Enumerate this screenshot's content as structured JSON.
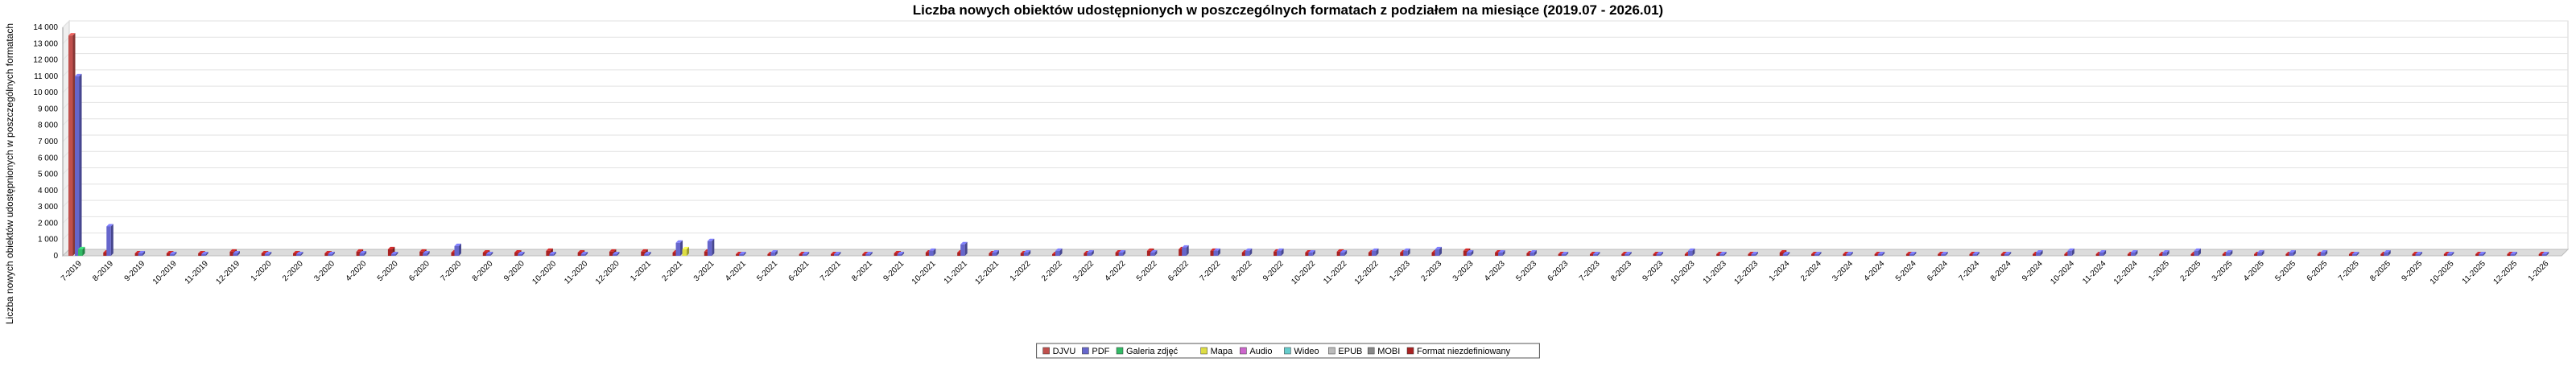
{
  "chart_data": {
    "type": "bar",
    "title": "Liczba nowych obiektów udostępnionych w poszczególnych formatach z podziałem na miesiące (2019.07 - 2026.01)",
    "ylabel": "Liczba nowych obiektów udostępnionych w poszczególnych formatach",
    "xlabel": "",
    "ylim": [
      0,
      14000
    ],
    "yticks": [
      0,
      1000,
      2000,
      3000,
      4000,
      5000,
      6000,
      7000,
      8000,
      9000,
      10000,
      11000,
      12000,
      13000,
      14000
    ],
    "ytick_labels": [
      "0",
      "1 000",
      "2 000",
      "3 000",
      "4 000",
      "5 000",
      "6 000",
      "7 000",
      "8 000",
      "9 000",
      "10 000",
      "11 000",
      "12 000",
      "13 000",
      "14 000"
    ],
    "grid": true,
    "legend_position": "bottom",
    "categories": [
      "7-2019",
      "8-2019",
      "9-2019",
      "10-2019",
      "11-2019",
      "12-2019",
      "1-2020",
      "2-2020",
      "3-2020",
      "4-2020",
      "5-2020",
      "6-2020",
      "7-2020",
      "8-2020",
      "9-2020",
      "10-2020",
      "11-2020",
      "12-2020",
      "1-2021",
      "2-2021",
      "3-2021",
      "4-2021",
      "5-2021",
      "6-2021",
      "7-2021",
      "8-2021",
      "9-2021",
      "10-2021",
      "11-2021",
      "12-2021",
      "1-2022",
      "2-2022",
      "3-2022",
      "4-2022",
      "5-2022",
      "6-2022",
      "7-2022",
      "8-2022",
      "9-2022",
      "10-2022",
      "11-2022",
      "12-2022",
      "1-2023",
      "2-2023",
      "3-2023",
      "4-2023",
      "5-2023",
      "6-2023",
      "7-2023",
      "8-2023",
      "9-2023",
      "10-2023",
      "11-2023",
      "12-2023",
      "1-2024",
      "2-2024",
      "3-2024",
      "4-2024",
      "5-2024",
      "6-2024",
      "7-2024",
      "8-2024",
      "9-2024",
      "10-2024",
      "11-2024",
      "12-2024",
      "1-2025",
      "2-2025",
      "3-2025",
      "4-2025",
      "5-2025",
      "6-2025",
      "7-2025",
      "8-2025",
      "9-2025",
      "10-2025",
      "11-2025",
      "12-2025",
      "1-2026"
    ],
    "series": [
      {
        "name": "DJVU",
        "color": "#c0504d",
        "values": [
          13500,
          0,
          0,
          0,
          0,
          0,
          0,
          0,
          0,
          0,
          0,
          0,
          0,
          0,
          0,
          0,
          0,
          0,
          0,
          0,
          0,
          0,
          0,
          0,
          0,
          0,
          0,
          0,
          0,
          0,
          0,
          0,
          0,
          0,
          0,
          0,
          0,
          0,
          0,
          0,
          0,
          0,
          0,
          0,
          0,
          0,
          0,
          0,
          0,
          0,
          0,
          0,
          0,
          0,
          0,
          0,
          0,
          0,
          0,
          0,
          0,
          0,
          0,
          0,
          0,
          0,
          0,
          0,
          0,
          0,
          0,
          0,
          0,
          0,
          0,
          0,
          0,
          0,
          0
        ]
      },
      {
        "name": "PDF",
        "color": "#6666cc",
        "values": [
          11000,
          1800,
          150,
          100,
          100,
          150,
          100,
          100,
          100,
          150,
          100,
          150,
          600,
          100,
          100,
          100,
          100,
          100,
          100,
          800,
          900,
          100,
          200,
          100,
          100,
          100,
          100,
          300,
          700,
          200,
          200,
          300,
          200,
          200,
          200,
          500,
          300,
          300,
          300,
          200,
          200,
          300,
          300,
          400,
          200,
          200,
          200,
          100,
          100,
          100,
          100,
          300,
          100,
          100,
          100,
          100,
          100,
          100,
          100,
          100,
          100,
          100,
          200,
          300,
          200,
          200,
          200,
          300,
          200,
          200,
          200,
          200,
          100,
          200,
          100,
          100,
          100,
          100,
          100
        ]
      },
      {
        "name": "Galeria zdjęć",
        "color": "#33bb66",
        "values": [
          400,
          0,
          0,
          0,
          0,
          0,
          0,
          0,
          0,
          0,
          0,
          0,
          0,
          0,
          0,
          0,
          0,
          0,
          0,
          0,
          0,
          0,
          0,
          0,
          0,
          0,
          0,
          0,
          0,
          0,
          0,
          0,
          0,
          0,
          0,
          0,
          0,
          0,
          0,
          0,
          0,
          0,
          0,
          0,
          0,
          0,
          0,
          0,
          0,
          0,
          0,
          0,
          0,
          0,
          0,
          0,
          0,
          0,
          0,
          0,
          0,
          0,
          0,
          0,
          0,
          0,
          0,
          0,
          0,
          0,
          0,
          0,
          0,
          0,
          0,
          0,
          0,
          0,
          0
        ]
      },
      {
        "name": "Mapa",
        "color": "#dddd44",
        "values": [
          0,
          0,
          0,
          0,
          0,
          0,
          0,
          0,
          0,
          0,
          0,
          0,
          0,
          0,
          0,
          0,
          0,
          0,
          0,
          400,
          0,
          0,
          0,
          0,
          0,
          0,
          0,
          0,
          0,
          0,
          0,
          0,
          0,
          0,
          0,
          0,
          0,
          0,
          0,
          0,
          0,
          0,
          0,
          0,
          0,
          0,
          0,
          0,
          0,
          0,
          0,
          0,
          0,
          0,
          0,
          0,
          0,
          0,
          0,
          0,
          0,
          0,
          0,
          0,
          0,
          0,
          0,
          0,
          0,
          0,
          0,
          0,
          0,
          0,
          0,
          0,
          0,
          0,
          0
        ]
      },
      {
        "name": "Audio",
        "color": "#cc66cc",
        "values": [
          0,
          0,
          0,
          0,
          0,
          0,
          0,
          0,
          0,
          0,
          0,
          0,
          0,
          0,
          0,
          0,
          0,
          0,
          0,
          0,
          0,
          0,
          0,
          0,
          0,
          0,
          0,
          0,
          0,
          0,
          0,
          0,
          0,
          0,
          0,
          0,
          0,
          0,
          0,
          0,
          0,
          0,
          0,
          0,
          0,
          0,
          0,
          0,
          0,
          0,
          0,
          0,
          0,
          0,
          0,
          0,
          0,
          0,
          0,
          0,
          0,
          0,
          0,
          0,
          0,
          0,
          0,
          0,
          0,
          0,
          0,
          0,
          0,
          0,
          0,
          0,
          0,
          0,
          0
        ]
      },
      {
        "name": "Wideo",
        "color": "#66cccc",
        "values": [
          0,
          0,
          0,
          0,
          0,
          0,
          0,
          0,
          0,
          0,
          0,
          0,
          0,
          0,
          0,
          0,
          0,
          0,
          0,
          0,
          0,
          0,
          0,
          0,
          0,
          0,
          0,
          0,
          0,
          0,
          0,
          0,
          0,
          0,
          0,
          0,
          0,
          0,
          0,
          0,
          0,
          0,
          0,
          0,
          0,
          0,
          0,
          0,
          0,
          0,
          0,
          0,
          0,
          0,
          0,
          0,
          0,
          0,
          0,
          0,
          0,
          0,
          0,
          0,
          0,
          0,
          0,
          0,
          0,
          0,
          0,
          0,
          0,
          0,
          0,
          0,
          0,
          0,
          0
        ]
      },
      {
        "name": "EPUB",
        "color": "#bbbbbb",
        "values": [
          0,
          0,
          0,
          0,
          0,
          0,
          0,
          0,
          0,
          0,
          0,
          0,
          0,
          0,
          0,
          0,
          0,
          0,
          0,
          0,
          0,
          0,
          0,
          0,
          0,
          0,
          0,
          0,
          0,
          0,
          0,
          0,
          0,
          0,
          0,
          0,
          0,
          0,
          0,
          0,
          0,
          0,
          0,
          0,
          0,
          0,
          0,
          0,
          0,
          0,
          0,
          0,
          0,
          0,
          0,
          0,
          0,
          0,
          0,
          0,
          0,
          0,
          0,
          0,
          0,
          0,
          0,
          0,
          0,
          0,
          0,
          0,
          0,
          0,
          0,
          0,
          0,
          0,
          0
        ]
      },
      {
        "name": "MOBI",
        "color": "#888888",
        "values": [
          0,
          0,
          0,
          0,
          0,
          0,
          0,
          0,
          0,
          0,
          0,
          0,
          0,
          0,
          0,
          0,
          0,
          0,
          0,
          0,
          0,
          0,
          0,
          0,
          0,
          0,
          0,
          0,
          0,
          0,
          0,
          0,
          0,
          0,
          0,
          0,
          0,
          0,
          0,
          0,
          0,
          0,
          0,
          0,
          0,
          0,
          0,
          0,
          0,
          0,
          0,
          0,
          0,
          0,
          0,
          0,
          0,
          0,
          0,
          0,
          0,
          0,
          0,
          0,
          0,
          0,
          0,
          0,
          0,
          0,
          0,
          0,
          0,
          0,
          0,
          0,
          0,
          0,
          0
        ]
      },
      {
        "name": "Format niezdefiniowany",
        "color": "#aa2222",
        "values": [
          0,
          200,
          150,
          150,
          150,
          250,
          150,
          150,
          150,
          250,
          400,
          250,
          200,
          200,
          200,
          300,
          200,
          250,
          250,
          200,
          250,
          100,
          100,
          100,
          100,
          100,
          150,
          200,
          200,
          150,
          150,
          100,
          150,
          200,
          300,
          400,
          300,
          200,
          250,
          200,
          250,
          200,
          200,
          200,
          300,
          200,
          150,
          100,
          100,
          100,
          100,
          100,
          100,
          100,
          200,
          100,
          100,
          100,
          100,
          100,
          100,
          100,
          100,
          100,
          100,
          100,
          100,
          100,
          100,
          100,
          100,
          100,
          100,
          100,
          100,
          100,
          100,
          100,
          100
        ]
      }
    ]
  }
}
